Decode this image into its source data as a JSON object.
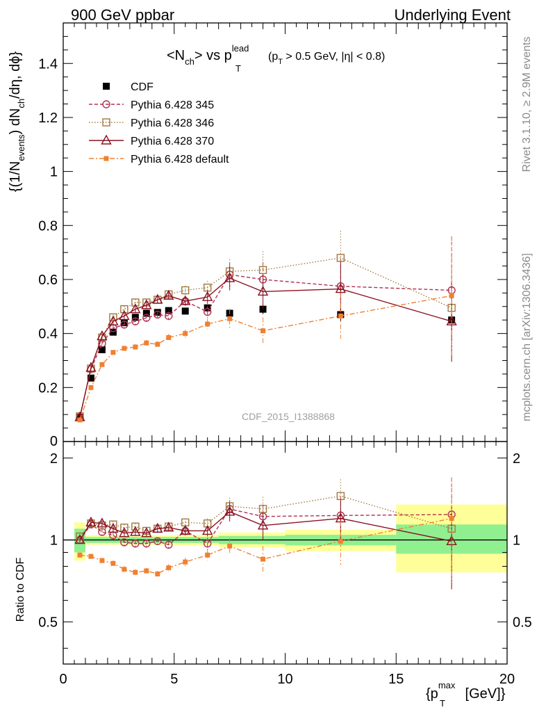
{
  "header": {
    "left": "900 GeV ppbar",
    "right": "Underlying Event",
    "side_top": "Rivet 3.1.10, ≥ 2.9M events",
    "side_bottom": "mcplots.cern.ch [arXiv:1306.3436]",
    "watermark": "CDF_2015_I1388868"
  },
  "colors": {
    "cdf": "#000000",
    "p345": "#b03050",
    "p346": "#a07840",
    "p370": "#8b1020",
    "pdefault": "#f08030",
    "band_inner": "#90f090",
    "band_outer": "#ffff99"
  },
  "chart_data": [
    {
      "type": "line",
      "title_main": "<N",
      "title_sub1": "ch",
      "title_mid": "> vs p",
      "title_sup": "lead",
      "title_sub2": "T",
      "title_cut_a": "(p",
      "title_cut_sub": "T",
      "title_cut_b": " > 0.5 GeV, |η| < 0.8)",
      "ylabel_a": "{(1/N",
      "ylabel_sub1": "events",
      "ylabel_b": ") dN",
      "ylabel_sub2": "ch",
      "ylabel_c": "/dη, dϕ}",
      "xlim": [
        0,
        20
      ],
      "ylim": [
        0,
        1.55
      ],
      "yticks": [
        "0.2",
        "0.4",
        "0.6",
        "0.8",
        "1",
        "1.2",
        "1.4"
      ],
      "ytick_zero": "0",
      "legend_position": "top-left",
      "x": [
        0.75,
        1.25,
        1.75,
        2.25,
        2.75,
        3.25,
        3.75,
        4.25,
        4.75,
        5.5,
        6.5,
        7.5,
        9.0,
        12.5,
        17.5
      ],
      "series": [
        {
          "name": "CDF",
          "key": "cdf",
          "marker": "square-filled",
          "dash": "none",
          "values": [
            0.09,
            0.235,
            0.34,
            0.405,
            0.44,
            0.46,
            0.475,
            0.478,
            0.485,
            0.483,
            0.495,
            0.475,
            0.49,
            0.47,
            0.45
          ],
          "errors": [
            0.004,
            0.005,
            0.006,
            0.007,
            0.008,
            0.008,
            0.009,
            0.01,
            0.01,
            0.011,
            0.012,
            0.015,
            0.018,
            0.025,
            0.04
          ]
        },
        {
          "name": "Pythia 6.428 345",
          "key": "p345",
          "marker": "circle-open",
          "dash": "5,3",
          "values": [
            0.09,
            0.268,
            0.363,
            0.42,
            0.433,
            0.445,
            0.458,
            0.47,
            0.465,
            0.52,
            0.48,
            0.618,
            0.6,
            0.575,
            0.56
          ],
          "errors": [
            0.004,
            0.006,
            0.008,
            0.01,
            0.011,
            0.012,
            0.013,
            0.014,
            0.015,
            0.017,
            0.022,
            0.045,
            0.065,
            0.1,
            0.2
          ]
        },
        {
          "name": "Pythia 6.428 346",
          "key": "p346",
          "marker": "square-open",
          "dash": "1.5,2.5",
          "values": [
            0.093,
            0.27,
            0.385,
            0.46,
            0.49,
            0.515,
            0.515,
            0.525,
            0.545,
            0.56,
            0.57,
            0.63,
            0.635,
            0.68,
            0.495
          ],
          "errors": [
            0.004,
            0.006,
            0.008,
            0.01,
            0.011,
            0.012,
            0.013,
            0.014,
            0.015,
            0.017,
            0.025,
            0.045,
            0.07,
            0.1,
            0.2
          ]
        },
        {
          "name": "Pythia 6.428 370",
          "key": "p370",
          "marker": "triangle-open",
          "dash": "none",
          "values": [
            0.09,
            0.273,
            0.39,
            0.445,
            0.465,
            0.49,
            0.505,
            0.525,
            0.54,
            0.52,
            0.535,
            0.605,
            0.555,
            0.565,
            0.445
          ],
          "errors": [
            0.004,
            0.006,
            0.008,
            0.01,
            0.011,
            0.012,
            0.013,
            0.014,
            0.015,
            0.017,
            0.025,
            0.045,
            0.065,
            0.1,
            0.15
          ]
        },
        {
          "name": "Pythia 6.428 default",
          "key": "pdefault",
          "marker": "square-small",
          "dash": "7,3,2,3",
          "values": [
            0.08,
            0.2,
            0.285,
            0.33,
            0.345,
            0.35,
            0.365,
            0.36,
            0.385,
            0.4,
            0.435,
            0.455,
            0.41,
            0.465,
            0.54
          ],
          "errors": [
            0.004,
            0.005,
            0.007,
            0.008,
            0.009,
            0.01,
            0.011,
            0.012,
            0.013,
            0.015,
            0.02,
            0.035,
            0.05,
            0.085,
            0.22
          ]
        }
      ]
    },
    {
      "type": "line",
      "title": "",
      "ylabel": "Ratio to CDF",
      "xlabel_a": "{p",
      "xlabel_sup": "max",
      "xlabel_sub": "T",
      "xlabel_b": " [GeV]}",
      "xlim": [
        0,
        20
      ],
      "ylim": [
        0.35,
        2.3
      ],
      "log_y": true,
      "yticks": [
        "0.5",
        "1",
        "2"
      ],
      "xticks": [
        "0",
        "5",
        "10",
        "15",
        "20"
      ],
      "bands": [
        {
          "x0": 0.5,
          "x1": 1.0,
          "inner": [
            0.9,
            1.1
          ],
          "outer": [
            0.84,
            1.16
          ]
        },
        {
          "x0": 1.0,
          "x1": 5.0,
          "inner": [
            0.975,
            1.025
          ],
          "outer": [
            0.96,
            1.04
          ]
        },
        {
          "x0": 5.0,
          "x1": 7.0,
          "inner": [
            0.975,
            1.025
          ],
          "outer": [
            0.955,
            1.045
          ]
        },
        {
          "x0": 7.0,
          "x1": 10.0,
          "inner": [
            0.965,
            1.035
          ],
          "outer": [
            0.94,
            1.065
          ]
        },
        {
          "x0": 10.0,
          "x1": 15.0,
          "inner": [
            0.955,
            1.045
          ],
          "outer": [
            0.91,
            1.09
          ]
        },
        {
          "x0": 15.0,
          "x1": 20.0,
          "inner": [
            0.89,
            1.14
          ],
          "outer": [
            0.76,
            1.35
          ]
        }
      ],
      "x": [
        0.75,
        1.25,
        1.75,
        2.25,
        2.75,
        3.25,
        3.75,
        4.25,
        4.75,
        5.5,
        6.5,
        7.5,
        9.0,
        12.5,
        17.5
      ],
      "series": [
        {
          "name": "Pythia 6.428 345",
          "key": "p345",
          "marker": "circle-open",
          "dash": "5,3",
          "values": [
            1.0,
            1.14,
            1.07,
            1.04,
            0.98,
            0.97,
            0.97,
            0.99,
            0.96,
            1.08,
            0.97,
            1.3,
            1.22,
            1.23,
            1.24
          ],
          "errors": [
            0.03,
            0.03,
            0.03,
            0.03,
            0.03,
            0.03,
            0.03,
            0.03,
            0.03,
            0.04,
            0.05,
            0.1,
            0.13,
            0.21,
            0.45
          ]
        },
        {
          "name": "Pythia 6.428 346",
          "key": "p346",
          "marker": "square-open",
          "dash": "1.5,2.5",
          "values": [
            1.03,
            1.15,
            1.13,
            1.14,
            1.11,
            1.12,
            1.08,
            1.1,
            1.12,
            1.16,
            1.15,
            1.33,
            1.3,
            1.45,
            1.1
          ],
          "errors": [
            0.03,
            0.03,
            0.03,
            0.03,
            0.03,
            0.03,
            0.03,
            0.03,
            0.03,
            0.04,
            0.05,
            0.1,
            0.14,
            0.22,
            0.45
          ]
        },
        {
          "name": "Pythia 6.428 370",
          "key": "p370",
          "marker": "triangle-open",
          "dash": "none",
          "values": [
            1.0,
            1.16,
            1.15,
            1.1,
            1.06,
            1.07,
            1.06,
            1.1,
            1.11,
            1.08,
            1.08,
            1.27,
            1.13,
            1.2,
            0.99
          ],
          "errors": [
            0.03,
            0.03,
            0.03,
            0.03,
            0.03,
            0.03,
            0.03,
            0.03,
            0.03,
            0.04,
            0.05,
            0.1,
            0.13,
            0.21,
            0.33
          ]
        },
        {
          "name": "Pythia 6.428 default",
          "key": "pdefault",
          "marker": "square-small",
          "dash": "7,3,2,3",
          "values": [
            0.88,
            0.87,
            0.84,
            0.82,
            0.78,
            0.76,
            0.77,
            0.75,
            0.79,
            0.83,
            0.88,
            0.95,
            0.85,
            0.99,
            1.2
          ],
          "errors": [
            0.02,
            0.02,
            0.02,
            0.02,
            0.02,
            0.02,
            0.02,
            0.02,
            0.025,
            0.03,
            0.04,
            0.07,
            0.1,
            0.18,
            0.5
          ]
        }
      ]
    }
  ]
}
